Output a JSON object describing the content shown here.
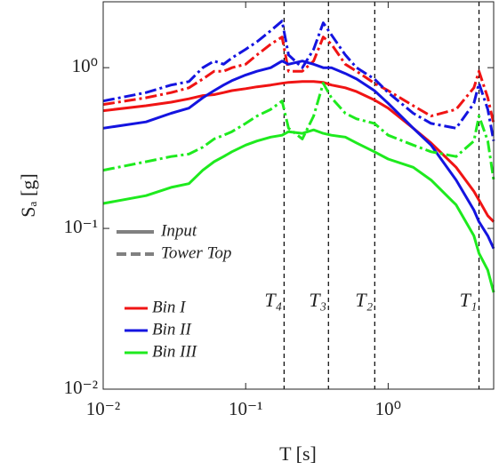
{
  "chart_data": {
    "type": "line",
    "x_label": "T [s]",
    "y_label": "Sₐ [g]",
    "log_x": true,
    "log_y": true,
    "xlim": [
      0.01,
      5.5
    ],
    "ylim": [
      0.01,
      2.57
    ],
    "xticks": [
      {
        "value": 0.01,
        "label": "10⁻²"
      },
      {
        "value": 0.1,
        "label": "10⁻¹"
      },
      {
        "value": 1,
        "label": "10⁰"
      }
    ],
    "yticks": [
      {
        "value": 0.01,
        "label": "10⁻²"
      },
      {
        "value": 0.1,
        "label": "10⁻¹"
      },
      {
        "value": 1,
        "label": "10⁰"
      }
    ],
    "x": [
      0.01,
      0.02,
      0.03,
      0.04,
      0.05,
      0.06,
      0.07,
      0.08,
      0.1,
      0.12,
      0.15,
      0.18,
      0.2,
      0.25,
      0.3,
      0.35,
      0.4,
      0.5,
      0.6,
      0.8,
      1,
      1.5,
      2,
      3,
      4,
      4.34,
      5,
      5.5
    ],
    "line_styles": [
      {
        "name": "Input",
        "dash": "solid"
      },
      {
        "name": "Tower Top",
        "dash": "dashdot"
      }
    ],
    "series": [
      {
        "name": "Bin I",
        "color": "#f01414",
        "input": [
          0.54,
          0.58,
          0.61,
          0.64,
          0.67,
          0.68,
          0.7,
          0.72,
          0.74,
          0.76,
          0.78,
          0.8,
          0.81,
          0.82,
          0.82,
          0.81,
          0.78,
          0.75,
          0.71,
          0.63,
          0.56,
          0.42,
          0.34,
          0.24,
          0.17,
          0.15,
          0.12,
          0.11
        ],
        "tower_top": [
          0.59,
          0.65,
          0.7,
          0.75,
          0.85,
          0.95,
          0.95,
          1.0,
          1.05,
          1.2,
          1.4,
          1.55,
          0.95,
          0.95,
          1.1,
          1.55,
          1.4,
          1.05,
          0.95,
          0.8,
          0.72,
          0.58,
          0.5,
          0.55,
          0.75,
          0.95,
          0.65,
          0.45
        ]
      },
      {
        "name": "Bin II",
        "color": "#1414e0",
        "input": [
          0.42,
          0.46,
          0.52,
          0.56,
          0.65,
          0.72,
          0.78,
          0.83,
          0.9,
          0.95,
          1.0,
          1.1,
          1.05,
          1.1,
          1.05,
          1.0,
          1.0,
          0.92,
          0.85,
          0.72,
          0.6,
          0.42,
          0.33,
          0.2,
          0.13,
          0.11,
          0.09,
          0.075
        ],
        "tower_top": [
          0.62,
          0.7,
          0.78,
          0.82,
          1.0,
          1.1,
          1.05,
          1.15,
          1.3,
          1.45,
          1.7,
          1.95,
          1.2,
          1.0,
          1.3,
          1.9,
          1.6,
          1.2,
          1.0,
          0.85,
          0.7,
          0.52,
          0.45,
          0.42,
          0.6,
          0.8,
          0.55,
          0.35
        ]
      },
      {
        "name": "Bin III",
        "color": "#1eea1e",
        "input": [
          0.143,
          0.16,
          0.18,
          0.19,
          0.23,
          0.26,
          0.28,
          0.3,
          0.33,
          0.35,
          0.37,
          0.38,
          0.4,
          0.39,
          0.41,
          0.39,
          0.38,
          0.37,
          0.34,
          0.3,
          0.27,
          0.24,
          0.2,
          0.14,
          0.09,
          0.07,
          0.055,
          0.04
        ],
        "tower_top": [
          0.23,
          0.26,
          0.28,
          0.29,
          0.32,
          0.36,
          0.38,
          0.4,
          0.45,
          0.5,
          0.55,
          0.62,
          0.42,
          0.36,
          0.5,
          0.8,
          0.65,
          0.52,
          0.48,
          0.45,
          0.38,
          0.33,
          0.3,
          0.28,
          0.35,
          0.5,
          0.35,
          0.2
        ]
      }
    ],
    "annotations": [
      {
        "label": "T₄",
        "x": 0.186
      },
      {
        "label": "T₃",
        "x": 0.381
      },
      {
        "label": "T₂",
        "x": 0.805
      },
      {
        "label": "T₁",
        "x": 4.34
      }
    ]
  }
}
